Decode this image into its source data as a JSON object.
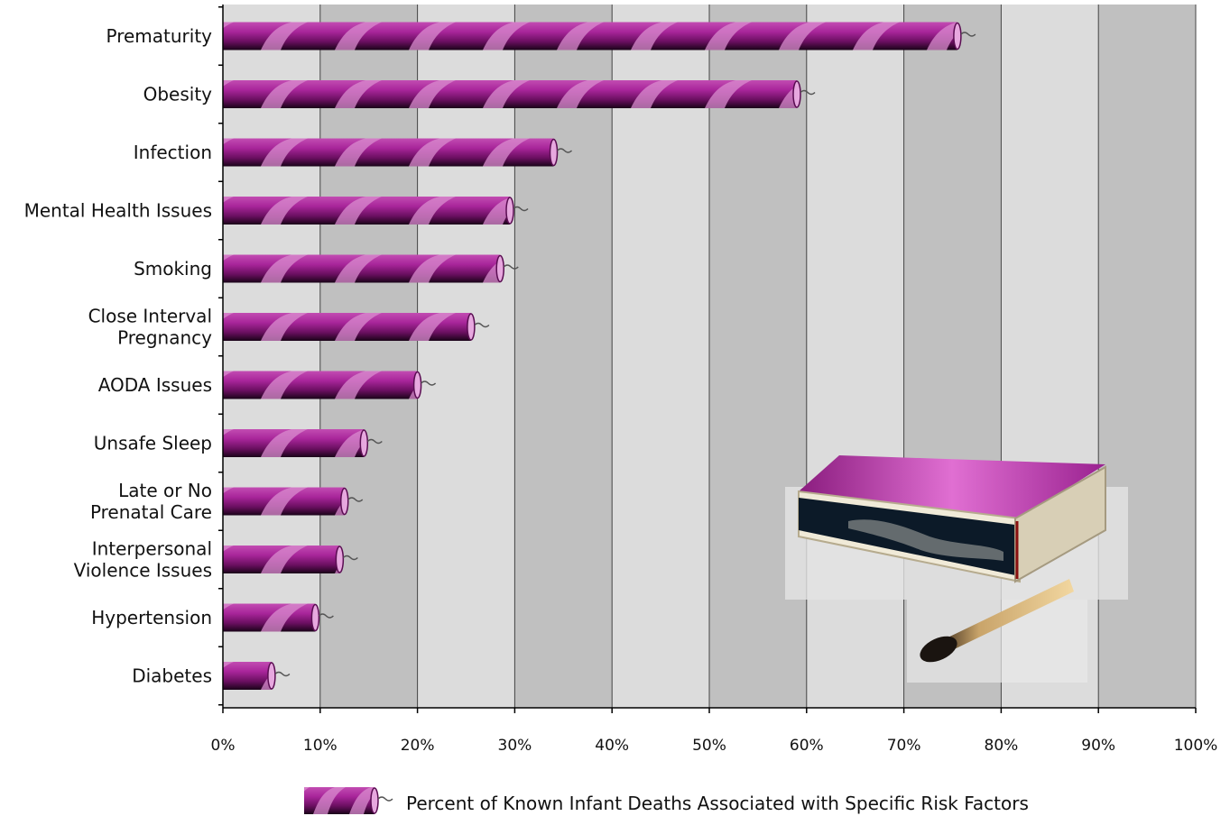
{
  "chart_data": {
    "type": "bar",
    "orientation": "horizontal",
    "categories": [
      "Prematurity",
      "Obesity",
      "Infection",
      "Mental Health Issues",
      "Smoking",
      "Close Interval Pregnancy",
      "AODA Issues",
      "Unsafe Sleep",
      "Late or No Prenatal Care",
      "Interpersonal Violence Issues",
      "Hypertension",
      "Diabetes"
    ],
    "category_lines": [
      [
        "Prematurity"
      ],
      [
        "Obesity"
      ],
      [
        "Infection"
      ],
      [
        "Mental Health Issues"
      ],
      [
        "Smoking"
      ],
      [
        "Close Interval",
        "Pregnancy"
      ],
      [
        "AODA Issues"
      ],
      [
        "Unsafe Sleep"
      ],
      [
        "Late or No",
        "Prenatal Care"
      ],
      [
        "Interpersonal",
        "Violence Issues"
      ],
      [
        "Hypertension"
      ],
      [
        "Diabetes"
      ]
    ],
    "series": [
      {
        "name": "Percent of Known Infant Deaths Associated with Specific Risk Factors",
        "values": [
          75.5,
          59,
          34,
          29.5,
          28.5,
          25.5,
          20,
          14.5,
          12.5,
          12,
          9.5,
          5
        ]
      }
    ],
    "x_ticks": [
      "0%",
      "10%",
      "20%",
      "30%",
      "40%",
      "50%",
      "60%",
      "70%",
      "80%",
      "90%",
      "100%"
    ],
    "xlim": [
      0,
      100
    ],
    "grid": true,
    "legend_position": "bottom",
    "colors": {
      "bar": "#b0279c",
      "bar_stripe": "#d98ccf",
      "band_dark": "#c0c0c0",
      "band_light": "#dcdcdc"
    },
    "decoration": [
      "matchbox-icon",
      "match-stick-icon"
    ]
  }
}
